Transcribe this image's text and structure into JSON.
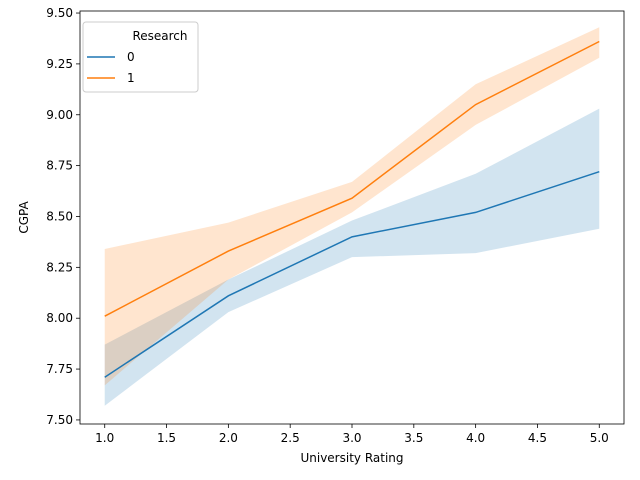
{
  "chart_data": {
    "type": "line",
    "xlabel": "University Rating",
    "ylabel": "CGPA",
    "xlim": [
      0.8,
      5.2
    ],
    "ylim": [
      7.48,
      9.51
    ],
    "xticks": [
      "1.0",
      "1.5",
      "2.0",
      "2.5",
      "3.0",
      "3.5",
      "4.0",
      "4.5",
      "5.0"
    ],
    "yticks": [
      "7.50",
      "7.75",
      "8.00",
      "8.25",
      "8.50",
      "8.75",
      "9.00",
      "9.25",
      "9.50"
    ],
    "grid": false,
    "legend": {
      "title": "Research",
      "placement": "top-left"
    },
    "x": [
      1,
      2,
      3,
      4,
      5
    ],
    "series": [
      {
        "name": "0",
        "color": "#1f77b4",
        "values": [
          7.71,
          8.11,
          8.4,
          8.52,
          8.72
        ],
        "ci_lower": [
          7.57,
          8.03,
          8.3,
          8.32,
          8.44
        ],
        "ci_upper": [
          7.87,
          8.19,
          8.48,
          8.71,
          9.03
        ]
      },
      {
        "name": "1",
        "color": "#ff7f0e",
        "values": [
          8.01,
          8.33,
          8.59,
          9.05,
          9.36
        ],
        "ci_lower": [
          7.67,
          8.19,
          8.52,
          8.95,
          9.28
        ],
        "ci_upper": [
          8.34,
          8.47,
          8.67,
          9.15,
          9.43
        ]
      }
    ]
  }
}
